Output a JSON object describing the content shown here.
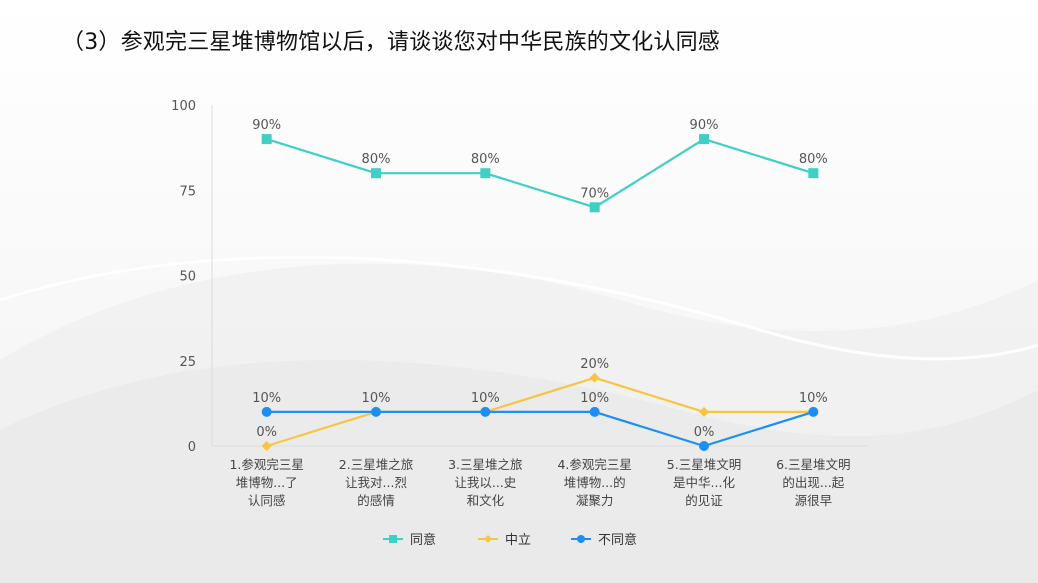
{
  "title": "（3）参观完三星堆博物馆以后，请谈谈您对中华民族的文化认同感",
  "colors": {
    "agree": "#3ECFC5",
    "neutral": "#F7C543",
    "disagree": "#1E8FF2",
    "axis": "#dcdcdc"
  },
  "chart_data": {
    "type": "line",
    "ylim": [
      0,
      100
    ],
    "yticks": [
      0,
      25,
      50,
      75,
      100
    ],
    "grid": false,
    "legend": "bottom",
    "categories": [
      [
        "1.参观完三星",
        "堆博物...了",
        "认同感"
      ],
      [
        "2.三星堆之旅",
        "让我对...烈",
        "的感情"
      ],
      [
        "3.三星堆之旅",
        "让我以...史",
        "和文化"
      ],
      [
        "4.参观完三星",
        "堆博物...的",
        "凝聚力"
      ],
      [
        "5.三星堆文明",
        "是中华...化",
        "的见证"
      ],
      [
        "6.三星堆文明",
        "的出现...起",
        "源很早"
      ]
    ],
    "series": [
      {
        "key": "agree",
        "name": "同意",
        "marker": "square",
        "values": [
          90,
          80,
          80,
          70,
          90,
          80
        ],
        "labels": [
          "90%",
          "80%",
          "80%",
          "70%",
          "90%",
          "80%"
        ]
      },
      {
        "key": "neutral",
        "name": "中立",
        "marker": "diamond",
        "values": [
          0,
          10,
          10,
          20,
          10,
          10
        ],
        "labels": [
          "0%",
          "",
          "",
          "20%",
          "",
          ""
        ]
      },
      {
        "key": "disagree",
        "name": "不同意",
        "marker": "circle",
        "values": [
          10,
          10,
          10,
          10,
          0,
          10
        ],
        "labels": [
          "10%",
          "10%",
          "10%",
          "10%",
          "0%",
          "10%"
        ]
      }
    ]
  }
}
